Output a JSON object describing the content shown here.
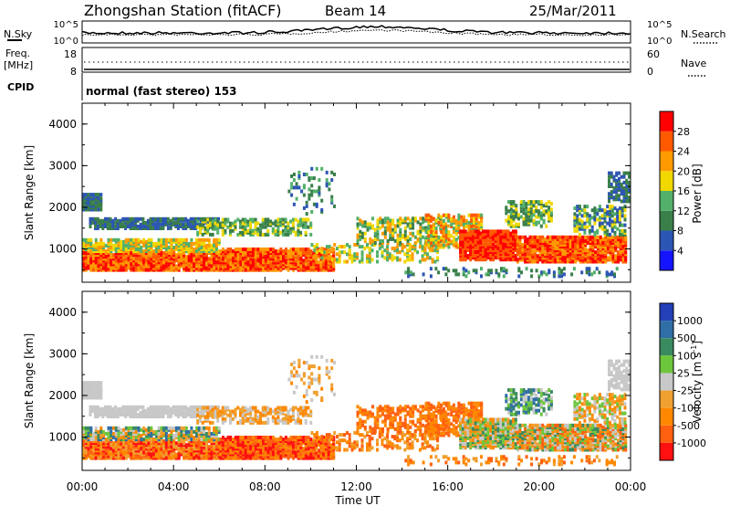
{
  "header": {
    "station": "Zhongshan Station (fitACF)",
    "beam": "Beam 14",
    "date": "25/Mar/2011"
  },
  "noise_panel": {
    "left_label": "N.Sky",
    "right_label": "N.Search",
    "left_top_tick": "10^5",
    "left_bottom_tick": "10^0",
    "right_top_tick": "10^5",
    "right_bottom_tick": "10^0"
  },
  "freq_panel": {
    "left_label_1": "Freq.",
    "left_label_2": "[MHz]",
    "right_label": "Nave",
    "left_top_tick": "18",
    "left_bottom_tick": "8",
    "right_top_tick": "60",
    "right_bottom_tick": "0"
  },
  "cpid": {
    "label": "CPID",
    "text": "normal (fast stereo) 153"
  },
  "colors": {
    "power_scale": [
      "#1414ff",
      "#2d56b4",
      "#3a7f4a",
      "#52b06a",
      "#f0d800",
      "#ff9a00",
      "#ff5a00",
      "#ff0000"
    ],
    "velocity_scale": [
      "#2440b8",
      "#2f6ea6",
      "#3a8a60",
      "#6ec63c",
      "#c8c8c8",
      "#f0a030",
      "#ff8800",
      "#ff6010",
      "#ff1010"
    ]
  },
  "chart_data": [
    {
      "type": "heatmap",
      "name": "power",
      "ylabel": "Slant Range [km]",
      "ylim": [
        200,
        4500
      ],
      "yticks": [
        "1000",
        "2000",
        "3000",
        "4000"
      ],
      "xlim_hours": [
        0,
        24
      ],
      "colorbar_label": "Power [dB]",
      "colorbar_ticks": [
        "4",
        "8",
        "12",
        "16",
        "20",
        "24",
        "28"
      ],
      "colorbar_range": [
        0,
        32
      ]
    },
    {
      "type": "heatmap",
      "name": "velocity",
      "ylabel": "Slant Range [km]",
      "ylim": [
        200,
        4500
      ],
      "yticks": [
        "1000",
        "2000",
        "3000",
        "4000"
      ],
      "xlim_hours": [
        0,
        24
      ],
      "colorbar_label": "Velocity [m s",
      "colorbar_label_sup": "-1",
      "colorbar_label_end": "]",
      "colorbar_ticks": [
        "1000",
        "500",
        "100",
        "25",
        "-25",
        "-100",
        "-500",
        "-1000"
      ]
    }
  ],
  "x_axis": {
    "label": "Time UT",
    "ticks": [
      "00:00",
      "04:00",
      "08:00",
      "12:00",
      "16:00",
      "20:00",
      "00:00"
    ]
  }
}
